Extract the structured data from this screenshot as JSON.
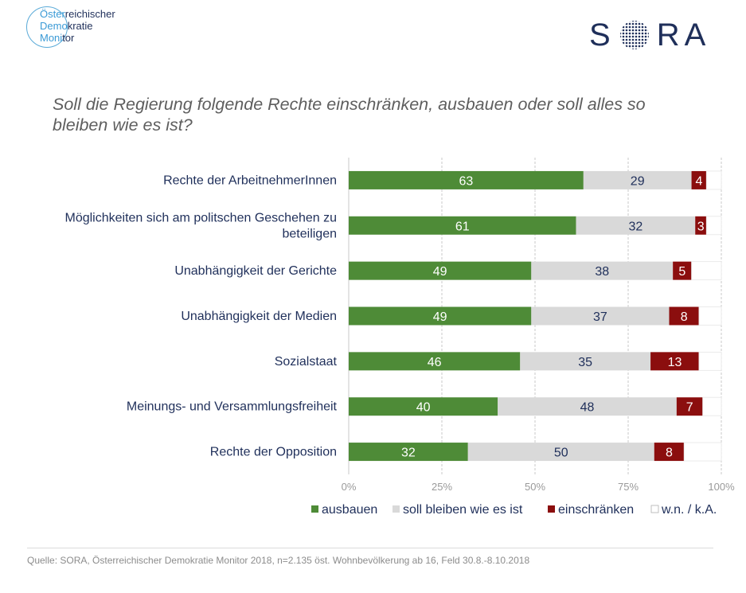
{
  "header": {
    "logo_left_lines": [
      "Öster",
      "reichischer",
      "Demo",
      "kratie",
      "Moni",
      "tor"
    ],
    "logo_right_letters": [
      "S",
      "R",
      "A"
    ],
    "question": "Soll die Regierung folgende Rechte einschränken, ausbauen oder soll alles so bleiben wie es ist?"
  },
  "chart_data": {
    "type": "bar",
    "orientation": "horizontal",
    "stacked": true,
    "categories": [
      "Rechte der ArbeitnehmerInnen",
      "Möglichkeiten sich am politschen Geschehen zu beteiligen",
      "Unabhängigkeit der Gerichte",
      "Unabhängigkeit der Medien",
      "Sozialstaat",
      "Meinungs- und Versammlungsfreiheit",
      "Rechte der Opposition"
    ],
    "series": [
      {
        "name": "ausbauen",
        "color": "#4e8b37",
        "label_color": "#ffffff",
        "values": [
          63,
          61,
          49,
          49,
          46,
          40,
          32
        ]
      },
      {
        "name": "soll bleiben wie es ist",
        "color": "#d9d9d9",
        "label_color": "#1f2f5a",
        "values": [
          29,
          32,
          38,
          37,
          35,
          48,
          50
        ]
      },
      {
        "name": "einschränken",
        "color": "#8b0e0e",
        "label_color": "#ffffff",
        "values": [
          4,
          3,
          5,
          8,
          13,
          7,
          8
        ]
      },
      {
        "name": "w.n. / k.A.",
        "color": "#ffffff",
        "label_color": "#1f2f5a",
        "values": [
          4,
          4,
          8,
          6,
          6,
          5,
          10
        ]
      }
    ],
    "xlim": [
      0,
      100
    ],
    "xticks": [
      "0%",
      "25%",
      "50%",
      "75%",
      "100%"
    ],
    "grid": true,
    "legend_position": "bottom"
  },
  "footer": {
    "source": "Quelle: SORA, Österreichischer Demokratie Monitor 2018, n=2.135 öst. Wohnbevölkerung  ab 16, Feld 30.8.-8.10.2018"
  }
}
